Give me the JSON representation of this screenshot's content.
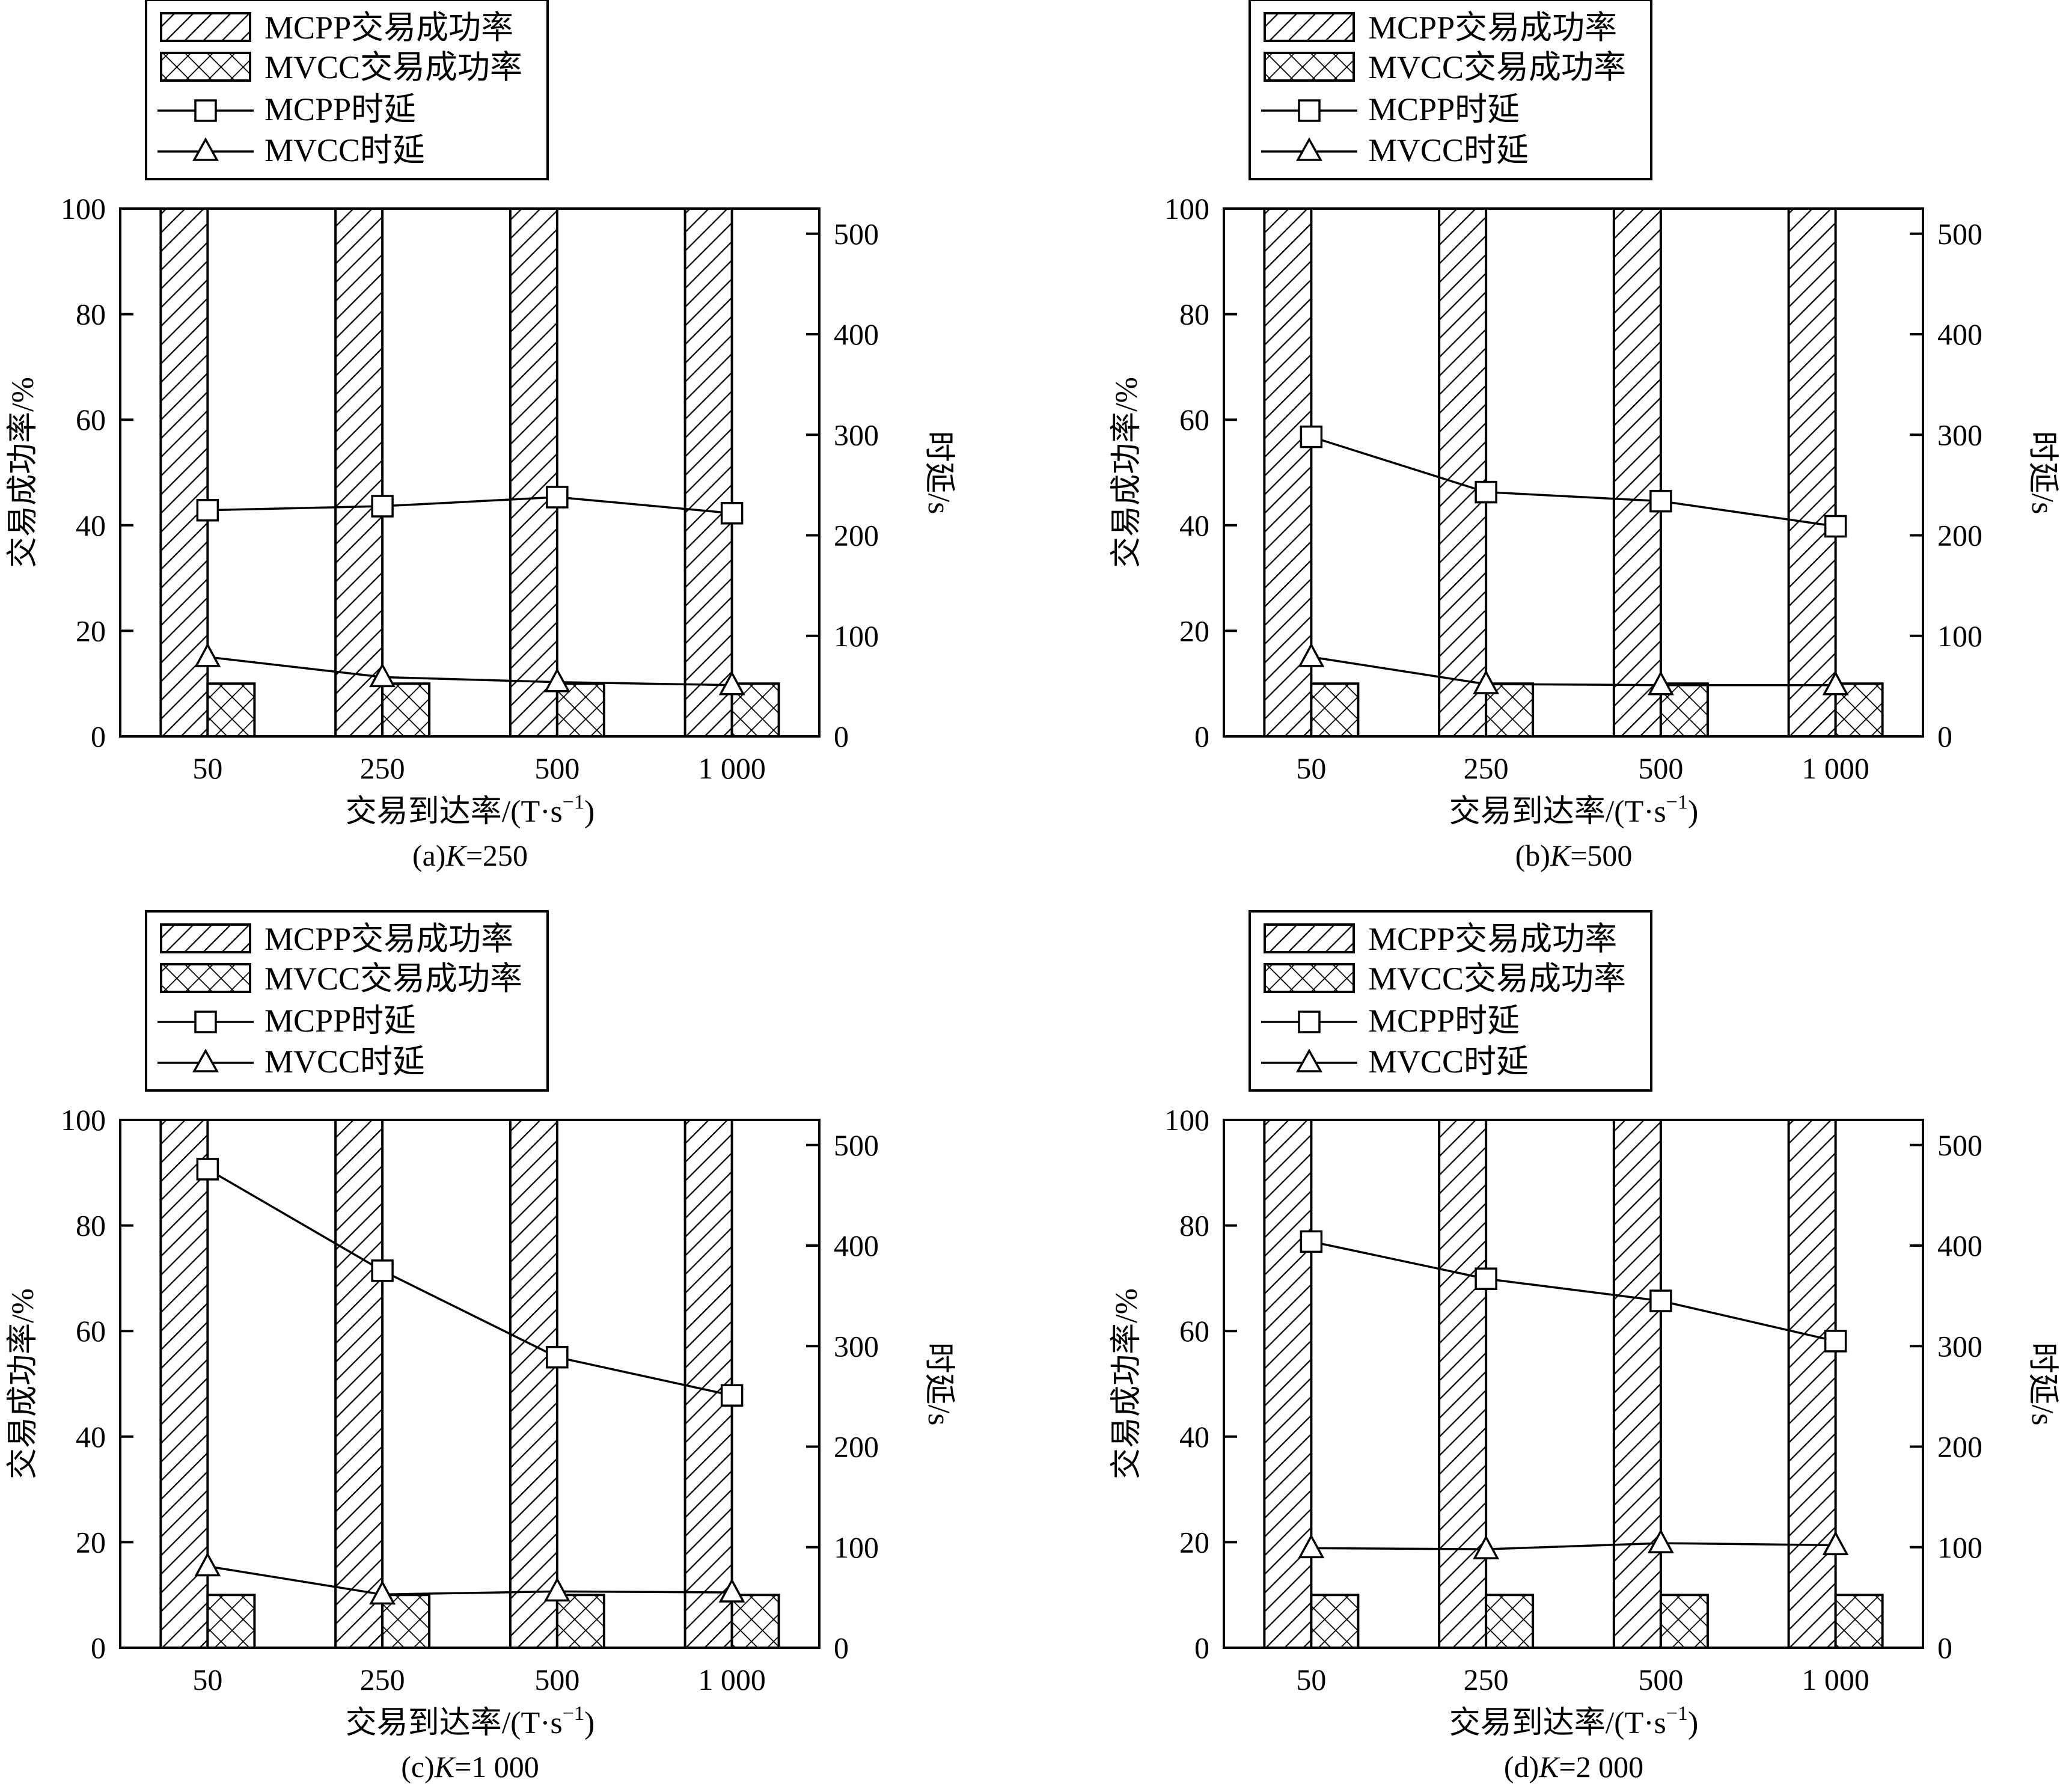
{
  "legend": {
    "mcpp_rate": "MCPP交易成功率",
    "mvcc_rate": "MVCC交易成功率",
    "mcpp_delay": "MCPP时延",
    "mvcc_delay": "MVCC时延"
  },
  "axis_titles": {
    "xlabel_main": "交易到达率/(T·s",
    "xlabel_sup": "−1",
    "xlabel_close": ")",
    "ylabel_left": "交易成功率/%",
    "ylabel_right": "时延/s"
  },
  "chart_data": [
    {
      "type": "bar",
      "caption_prefix": "(a)",
      "caption_k": "K",
      "caption_value": "=250",
      "categories": [
        "50",
        "250",
        "500",
        "1 000"
      ],
      "ylim_left": [
        0,
        100
      ],
      "yticks_left": [
        "0",
        "20",
        "40",
        "60",
        "80",
        "100"
      ],
      "ylim_right": [
        0,
        525
      ],
      "yticks_right": [
        "0",
        "100",
        "200",
        "300",
        "400",
        "500"
      ],
      "series": [
        {
          "name": "MCPP交易成功率",
          "axis": "left",
          "kind": "bar",
          "values": [
            100,
            100,
            100,
            100
          ]
        },
        {
          "name": "MVCC交易成功率",
          "axis": "left",
          "kind": "bar",
          "values": [
            10,
            10,
            10,
            10
          ]
        },
        {
          "name": "MCPP时延",
          "axis": "right",
          "kind": "line",
          "marker": "square",
          "values": [
            225,
            229,
            238,
            222
          ]
        },
        {
          "name": "MVCC时延",
          "axis": "right",
          "kind": "line",
          "marker": "triangle",
          "values": [
            79,
            59,
            54,
            51
          ]
        }
      ]
    },
    {
      "type": "bar",
      "caption_prefix": "(b)",
      "caption_k": "K",
      "caption_value": "=500",
      "categories": [
        "50",
        "250",
        "500",
        "1 000"
      ],
      "ylim_left": [
        0,
        100
      ],
      "yticks_left": [
        "0",
        "20",
        "40",
        "60",
        "80",
        "100"
      ],
      "ylim_right": [
        0,
        525
      ],
      "yticks_right": [
        "0",
        "100",
        "200",
        "300",
        "400",
        "500"
      ],
      "series": [
        {
          "name": "MCPP交易成功率",
          "axis": "left",
          "kind": "bar",
          "values": [
            100,
            100,
            100,
            100
          ]
        },
        {
          "name": "MVCC交易成功率",
          "axis": "left",
          "kind": "bar",
          "values": [
            10,
            10,
            10,
            10
          ]
        },
        {
          "name": "MCPP时延",
          "axis": "right",
          "kind": "line",
          "marker": "square",
          "values": [
            298,
            243,
            234,
            209
          ]
        },
        {
          "name": "MVCC时延",
          "axis": "right",
          "kind": "line",
          "marker": "triangle",
          "values": [
            79,
            52,
            51,
            51
          ]
        }
      ]
    },
    {
      "type": "bar",
      "caption_prefix": "(c)",
      "caption_k": "K",
      "caption_value": "=1 000",
      "categories": [
        "50",
        "250",
        "500",
        "1 000"
      ],
      "ylim_left": [
        0,
        100
      ],
      "yticks_left": [
        "0",
        "20",
        "40",
        "60",
        "80",
        "100"
      ],
      "ylim_right": [
        0,
        525
      ],
      "yticks_right": [
        "0",
        "100",
        "200",
        "300",
        "400",
        "500"
      ],
      "series": [
        {
          "name": "MCPP交易成功率",
          "axis": "left",
          "kind": "bar",
          "values": [
            100,
            100,
            100,
            100
          ]
        },
        {
          "name": "MVCC交易成功率",
          "axis": "left",
          "kind": "bar",
          "values": [
            10,
            10,
            10,
            10
          ]
        },
        {
          "name": "MCPP时延",
          "axis": "right",
          "kind": "line",
          "marker": "square",
          "values": [
            476,
            375,
            289,
            251
          ]
        },
        {
          "name": "MVCC时延",
          "axis": "right",
          "kind": "line",
          "marker": "triangle",
          "values": [
            81,
            53,
            56,
            55
          ]
        }
      ]
    },
    {
      "type": "bar",
      "caption_prefix": "(d)",
      "caption_k": "K",
      "caption_value": "=2 000",
      "categories": [
        "50",
        "250",
        "500",
        "1 000"
      ],
      "ylim_left": [
        0,
        100
      ],
      "yticks_left": [
        "0",
        "20",
        "40",
        "60",
        "80",
        "100"
      ],
      "ylim_right": [
        0,
        525
      ],
      "yticks_right": [
        "0",
        "100",
        "200",
        "300",
        "400",
        "500"
      ],
      "series": [
        {
          "name": "MCPP交易成功率",
          "axis": "left",
          "kind": "bar",
          "values": [
            100,
            100,
            100,
            100
          ]
        },
        {
          "name": "MVCC交易成功率",
          "axis": "left",
          "kind": "bar",
          "values": [
            10,
            10,
            10,
            10
          ]
        },
        {
          "name": "MCPP时延",
          "axis": "right",
          "kind": "line",
          "marker": "square",
          "values": [
            404,
            367,
            345,
            305
          ]
        },
        {
          "name": "MVCC时延",
          "axis": "right",
          "kind": "line",
          "marker": "triangle",
          "values": [
            99,
            98,
            104,
            102
          ]
        }
      ]
    }
  ]
}
